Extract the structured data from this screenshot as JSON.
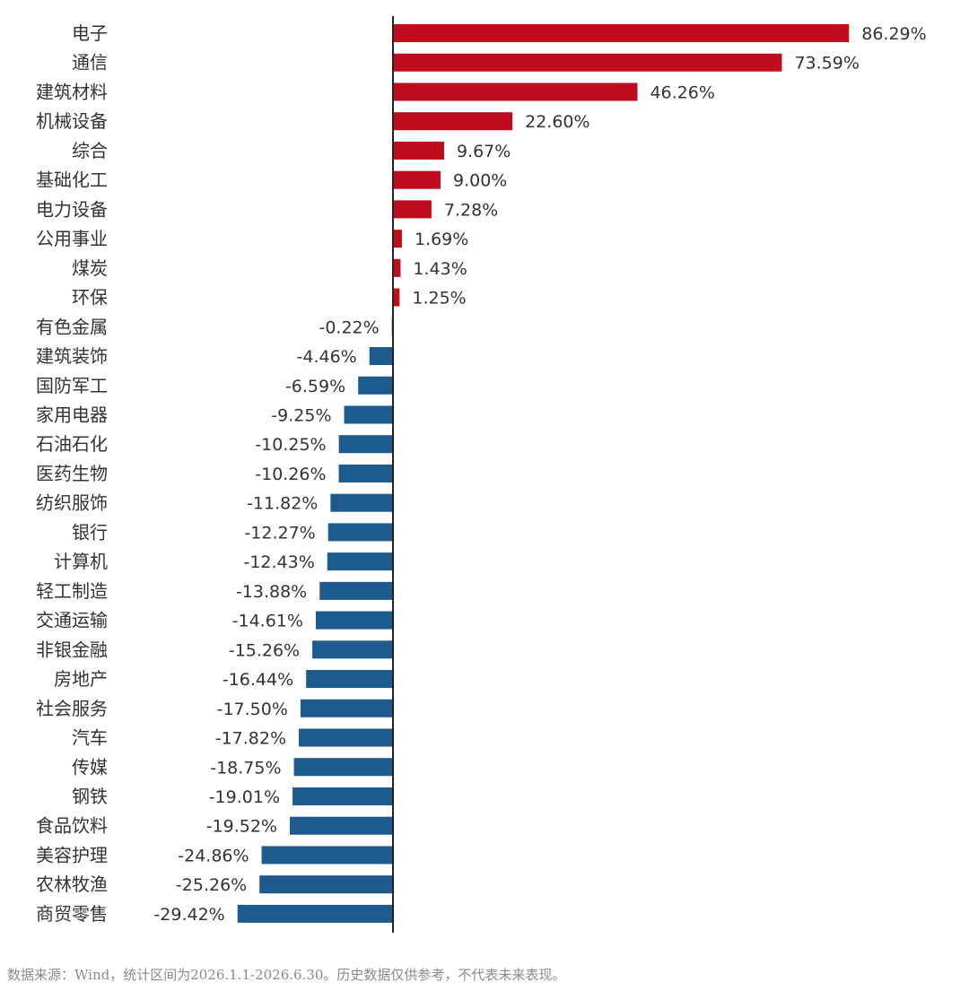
{
  "chart_data": {
    "type": "bar",
    "orientation": "horizontal",
    "title": "",
    "xlabel": "",
    "ylabel": "",
    "unit": "%",
    "categories": [
      "电子",
      "通信",
      "建筑材料",
      "机械设备",
      "综合",
      "基础化工",
      "电力设备",
      "公用事业",
      "煤炭",
      "环保",
      "有色金属",
      "建筑装饰",
      "国防军工",
      "家用电器",
      "石油石化",
      "医药生物",
      "纺织服饰",
      "银行",
      "计算机",
      "轻工制造",
      "交通运输",
      "非银金融",
      "房地产",
      "社会服务",
      "汽车",
      "传媒",
      "钢铁",
      "食品饮料",
      "美容护理",
      "农林牧渔",
      "商贸零售"
    ],
    "values": [
      86.29,
      73.59,
      46.26,
      22.6,
      9.67,
      9.0,
      7.28,
      1.69,
      1.43,
      1.25,
      -0.22,
      -4.46,
      -6.59,
      -9.25,
      -10.25,
      -10.26,
      -11.82,
      -12.27,
      -12.43,
      -13.88,
      -14.61,
      -15.26,
      -16.44,
      -17.5,
      -17.82,
      -18.75,
      -19.01,
      -19.52,
      -24.86,
      -25.26,
      -29.42
    ],
    "value_labels": [
      "86.29%",
      "73.59%",
      "46.26%",
      "22.60%",
      "9.67%",
      "9.00%",
      "7.28%",
      "1.69%",
      "1.43%",
      "1.25%",
      "-0.22%",
      "-4.46%",
      "-6.59%",
      "-9.25%",
      "-10.25%",
      "-10.26%",
      "-11.82%",
      "-12.27%",
      "-12.43%",
      "-13.88%",
      "-14.61%",
      "-15.26%",
      "-16.44%",
      "-17.50%",
      "-17.82%",
      "-18.75%",
      "-19.01%",
      "-19.52%",
      "-24.86%",
      "-25.26%",
      "-29.42%"
    ],
    "colors": {
      "positive": "#c00d1e",
      "negative": "#1d5a8e",
      "axis": "#222222"
    },
    "grid": false,
    "legend": "none"
  },
  "footnote": "数据来源：Wind，统计区间为2026.1.1-2026.6.30。历史数据仅供参考，不代表未来表现。"
}
